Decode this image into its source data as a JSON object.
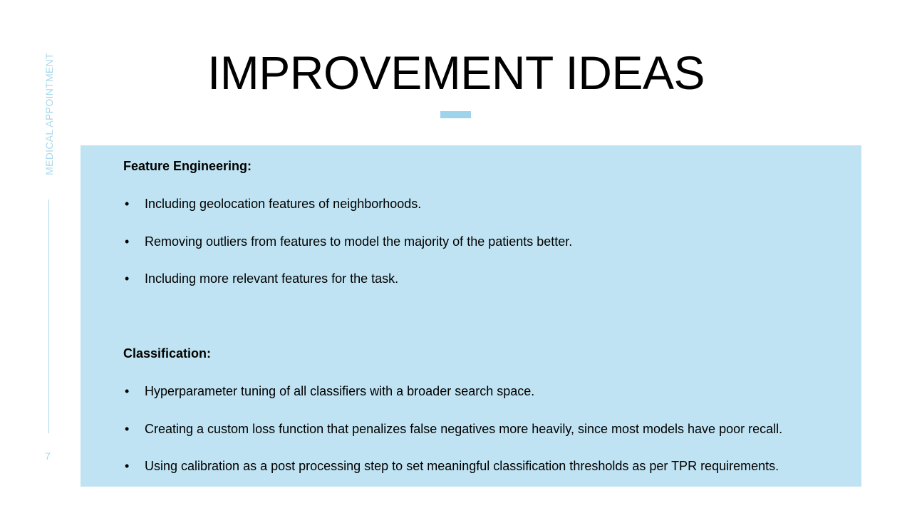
{
  "slide": {
    "side_label": "MEDICAL APPOINTMENT",
    "page_number": "7",
    "title": "IMPROVEMENT IDEAS",
    "accent_color": "#9dd4ec",
    "box_color": "#bfe3f2"
  },
  "sections": [
    {
      "heading": "Feature Engineering:",
      "bullets": [
        "Including geolocation features of neighborhoods.",
        "Removing outliers from features to model the majority of the patients better.",
        "Including more relevant features for the task."
      ]
    },
    {
      "heading": "Classification:",
      "bullets": [
        "Hyperparameter tuning of all classifiers with a broader search space.",
        "Creating a custom loss function that penalizes false negatives more heavily, since most models have poor recall.",
        "Using calibration as a post processing step to set meaningful classification thresholds as per TPR requirements."
      ]
    }
  ],
  "bullet_glyph": "•"
}
